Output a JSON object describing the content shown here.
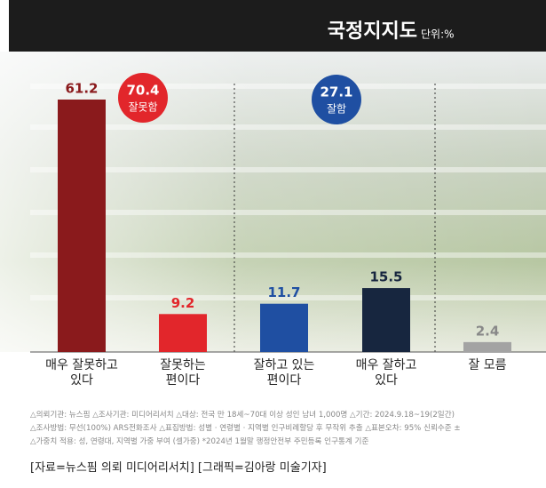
{
  "chart_data": {
    "type": "bar",
    "title": "국정지지도",
    "unit": "단위:%",
    "categories": [
      "매우 잘못하고\n있다",
      "잘못하는\n편이다",
      "잘하고 있는\n편이다",
      "매우 잘하고\n있다",
      "잘 모름"
    ],
    "values": [
      61.2,
      9.2,
      11.7,
      15.5,
      2.4
    ],
    "colors": [
      "#8a1a1c",
      "#e2262b",
      "#1f4fa2",
      "#17263f",
      "#a3a3a3"
    ],
    "annotations": [
      {
        "value": 70.4,
        "label": "잘못함",
        "color": "#e2262b"
      },
      {
        "value": 27.1,
        "label": "잘함",
        "color": "#1f4fa2"
      }
    ],
    "notes": [
      "△의뢰기관: 뉴스핌 △조사기관: 미디어리서치 △대상: 전국 만 18세~70대 이상 성인 남녀 1,000명 △기간: 2024.9.18~19(2일간)",
      "△조사방법: 무선(100%) ARS전화조사 △표집방법: 성별 · 연령별 · 지역별 인구비례할당 후 무작위 추출 △표본오차: 95% 신뢰수준 ±",
      "△가중치 적용: 성, 연령대, 지역별 가중 부여 (셀가중) *2024년 1월말 행정안전부 주민등록 인구통계 기준"
    ],
    "source": "[자료=뉴스핌 의뢰 미디어리서치] [그래픽=김아랑 미술기자]"
  }
}
